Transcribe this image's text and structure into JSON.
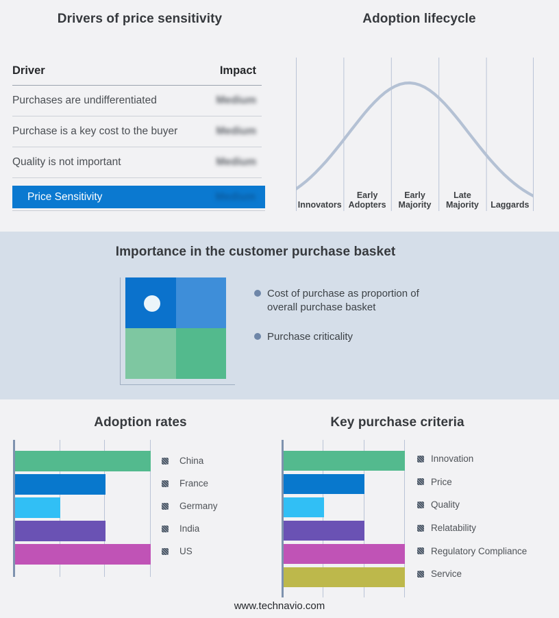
{
  "page": {
    "footer": "www.technavio.com",
    "colors": {
      "background": "#f2f2f4",
      "band_background": "#d5dee9",
      "highlight_blue": "#0b79d0",
      "curve": "#b4c1d4",
      "gridline": "#b9c3d6",
      "axis_line": "#7e92ae",
      "bullet_dot": "#6e86a8"
    }
  },
  "drivers": {
    "title": "Drivers of price sensitivity",
    "col_driver": "Driver",
    "col_impact": "Impact",
    "impact_values_blurred": true,
    "rows": [
      {
        "driver": "Purchases are undifferentiated",
        "impact": "Medium"
      },
      {
        "driver": "Purchase is a key cost to the buyer",
        "impact": "Medium"
      },
      {
        "driver": "Quality is not important",
        "impact": "Medium"
      }
    ],
    "highlight": {
      "driver": "Price Sensitivity",
      "impact": "Medium"
    }
  },
  "lifecycle": {
    "title": "Adoption lifecycle",
    "stages": [
      "Innovators",
      "Early Adopters",
      "Early Majority",
      "Late Majority",
      "Laggards"
    ]
  },
  "basket": {
    "title": "Importance in the customer purchase basket",
    "bullets": [
      "Cost of purchase as proportion of overall purchase basket",
      "Purchase criticality"
    ],
    "quadrant_colors": [
      "#0b72cc",
      "#3e8ed9",
      "#7ec7a1",
      "#53ba8d"
    ]
  },
  "adoption": {
    "title": "Adoption rates"
  },
  "criteria": {
    "title": "Key purchase criteria"
  },
  "chart_data": [
    {
      "type": "table",
      "title": "Drivers of price sensitivity",
      "columns": [
        "Driver",
        "Impact"
      ],
      "rows": [
        [
          "Purchases are undifferentiated",
          "Medium (blurred)"
        ],
        [
          "Purchase is a key cost to the buyer",
          "Medium (blurred)"
        ],
        [
          "Quality is not important",
          "Medium (blurred)"
        ],
        [
          "Price Sensitivity",
          "Medium (blurred)"
        ]
      ]
    },
    {
      "type": "line",
      "title": "Adoption lifecycle",
      "categories": [
        "Innovators",
        "Early Adopters",
        "Early Majority",
        "Late Majority",
        "Laggards"
      ],
      "shape": "bell curve rising from Innovators, peaking over Early Majority, falling through Laggards",
      "curve_params": {
        "peak_x": 0.475,
        "peak_y": 0.165,
        "sigma": 0.253
      },
      "grid": "six vertical category divider lines, no y axis ticks"
    },
    {
      "type": "bar",
      "title": "Adoption rates",
      "orientation": "horizontal",
      "categories": [
        "China",
        "France",
        "Germany",
        "India",
        "US"
      ],
      "values": [
        3,
        2,
        1,
        2,
        3
      ],
      "xlim": [
        0,
        3
      ],
      "colors": [
        "#53ba8e",
        "#0878cd",
        "#31bff5",
        "#6a52b4",
        "#c053b6"
      ],
      "legend_position": "right",
      "axis_tick_labels": "none shown"
    },
    {
      "type": "bar",
      "title": "Key purchase criteria",
      "orientation": "horizontal",
      "categories": [
        "Innovation",
        "Price",
        "Quality",
        "Relatability",
        "Regulatory Compliance",
        "Service"
      ],
      "values": [
        3,
        2,
        1,
        2,
        3,
        3
      ],
      "xlim": [
        0,
        3
      ],
      "colors": [
        "#53ba8e",
        "#0878cd",
        "#31bff5",
        "#6a52b4",
        "#c053b6",
        "#bdb84b"
      ],
      "legend_position": "right",
      "axis_tick_labels": "none shown"
    }
  ]
}
